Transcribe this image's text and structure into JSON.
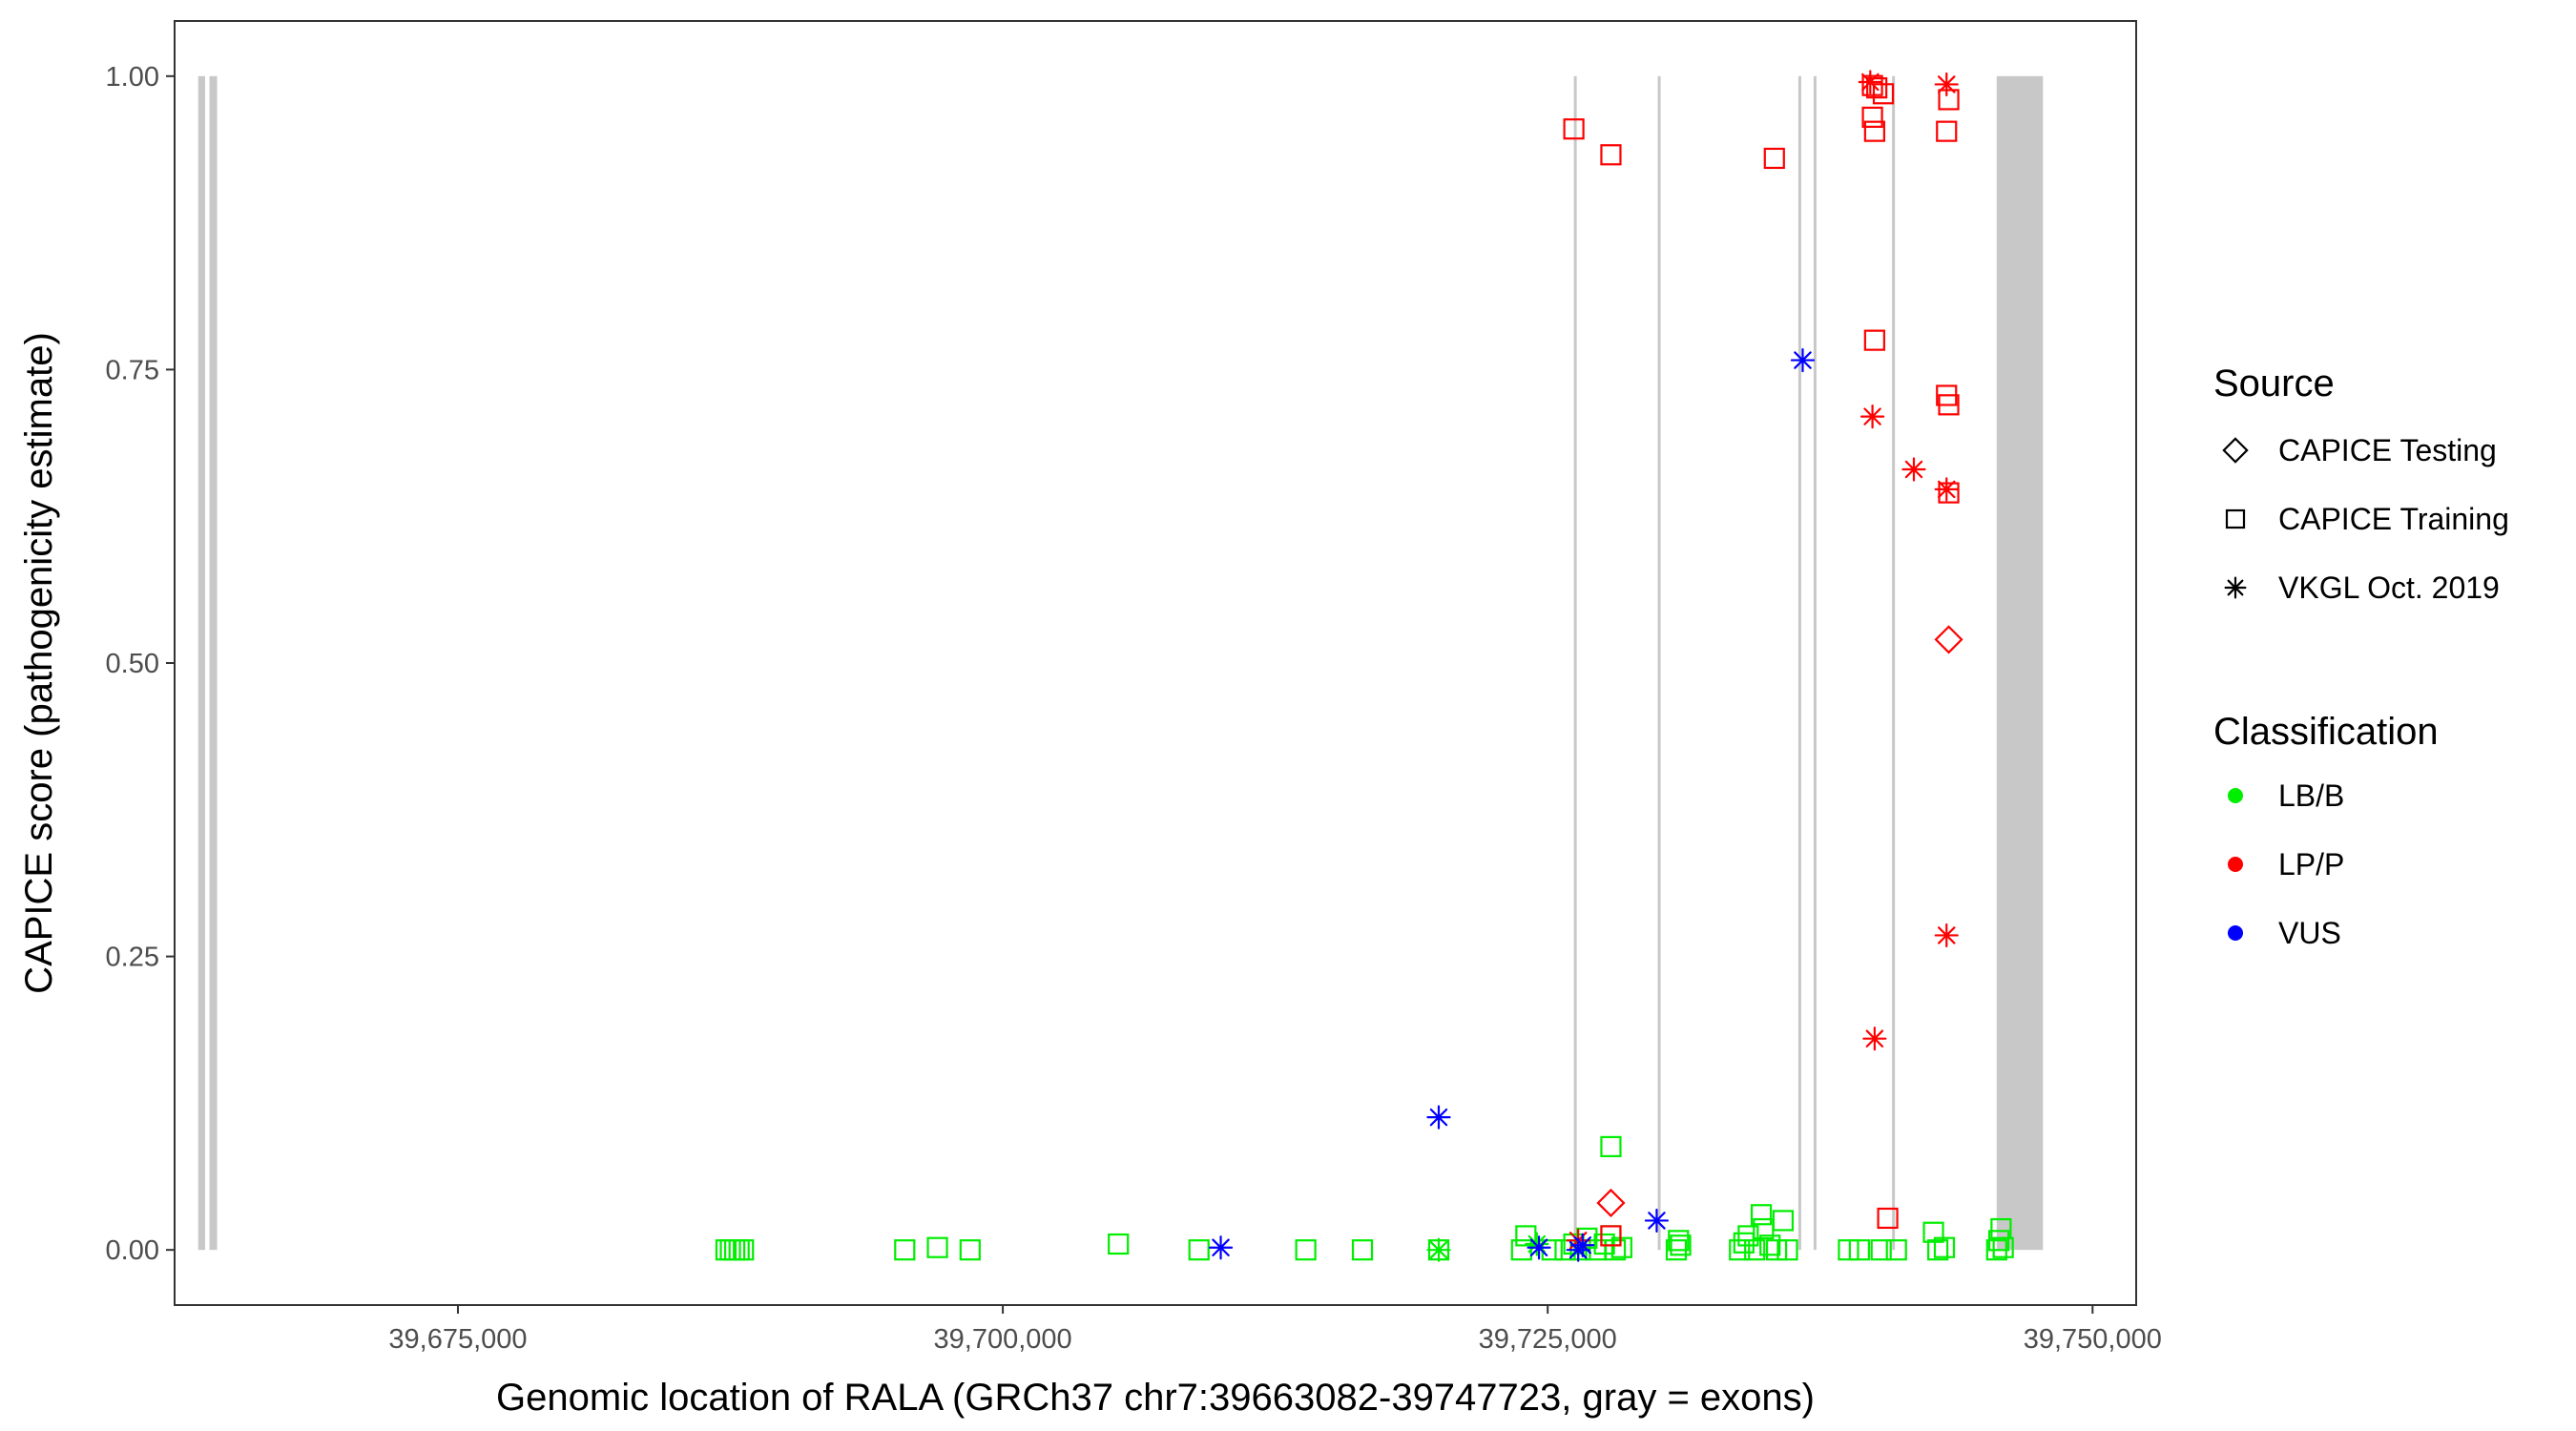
{
  "chart_data": {
    "type": "scatter",
    "xlabel": "Genomic location of RALA (GRCh37 chr7:39663082-39747723, gray = exons)",
    "ylabel": "CAPICE score (pathogenicity estimate)",
    "xlim": [
      39662000,
      39752000
    ],
    "ylim": [
      -0.047,
      1.047
    ],
    "x_ticks": [
      39675000,
      39700000,
      39725000,
      39750000
    ],
    "x_tick_labels": [
      "39,675,000",
      "39,700,000",
      "39,725,000",
      "39,750,000"
    ],
    "y_ticks": [
      0,
      0.25,
      0.5,
      0.75,
      1
    ],
    "y_tick_labels": [
      "0.00",
      "0.25",
      "0.50",
      "0.75",
      "1.00"
    ],
    "grid": false,
    "exons": [
      [
        39663082,
        39663400
      ],
      [
        39663600,
        39663950
      ],
      [
        39726200,
        39726300
      ],
      [
        39730050,
        39730150
      ],
      [
        39736500,
        39736600
      ],
      [
        39737200,
        39737300
      ],
      [
        39740800,
        39740900
      ],
      [
        39745600,
        39747723
      ]
    ],
    "exon_color": "#c8c8c8",
    "legend": {
      "placement": "right",
      "source_title": "Source",
      "source_entries": [
        {
          "label": "CAPICE Testing",
          "shape": "diamond"
        },
        {
          "label": "CAPICE Training",
          "shape": "square"
        },
        {
          "label": "VKGL Oct. 2019",
          "shape": "asterisk"
        }
      ],
      "class_title": "Classification",
      "class_entries": [
        {
          "label": "LB/B",
          "color": "#00ee00"
        },
        {
          "label": "LP/P",
          "color": "#ff0000"
        },
        {
          "label": "VUS",
          "color": "#0000ff"
        }
      ]
    },
    "points": [
      {
        "x": 39687300,
        "y": 0.0,
        "source": "square",
        "class": "LB/B"
      },
      {
        "x": 39687500,
        "y": 0.0,
        "source": "square",
        "class": "LB/B"
      },
      {
        "x": 39687700,
        "y": 0.0,
        "source": "square",
        "class": "LB/B"
      },
      {
        "x": 39687900,
        "y": 0.0,
        "source": "square",
        "class": "LB/B"
      },
      {
        "x": 39688100,
        "y": 0.0,
        "source": "square",
        "class": "LB/B"
      },
      {
        "x": 39695500,
        "y": 0.0,
        "source": "square",
        "class": "LB/B"
      },
      {
        "x": 39697000,
        "y": 0.002,
        "source": "square",
        "class": "LB/B"
      },
      {
        "x": 39698500,
        "y": 0.0,
        "source": "square",
        "class": "LB/B"
      },
      {
        "x": 39705300,
        "y": 0.005,
        "source": "square",
        "class": "LB/B"
      },
      {
        "x": 39709000,
        "y": 0.0,
        "source": "square",
        "class": "LB/B"
      },
      {
        "x": 39713900,
        "y": 0.0,
        "source": "square",
        "class": "LB/B"
      },
      {
        "x": 39716500,
        "y": 0.0,
        "source": "square",
        "class": "LB/B"
      },
      {
        "x": 39720000,
        "y": 0.0,
        "source": "square",
        "class": "LB/B"
      },
      {
        "x": 39720000,
        "y": 0.0,
        "source": "asterisk",
        "class": "LB/B"
      },
      {
        "x": 39723800,
        "y": 0.0,
        "source": "square",
        "class": "LB/B"
      },
      {
        "x": 39724000,
        "y": 0.012,
        "source": "square",
        "class": "LB/B"
      },
      {
        "x": 39724500,
        "y": 0.005,
        "source": "asterisk",
        "class": "LB/B"
      },
      {
        "x": 39725200,
        "y": 0.0,
        "source": "square",
        "class": "LB/B"
      },
      {
        "x": 39725800,
        "y": 0.0,
        "source": "square",
        "class": "LB/B"
      },
      {
        "x": 39726200,
        "y": 0.005,
        "source": "square",
        "class": "LB/B"
      },
      {
        "x": 39726500,
        "y": 0.0,
        "source": "square",
        "class": "LB/B"
      },
      {
        "x": 39726800,
        "y": 0.01,
        "source": "square",
        "class": "LB/B"
      },
      {
        "x": 39727200,
        "y": 0.0,
        "source": "square",
        "class": "LB/B"
      },
      {
        "x": 39727600,
        "y": 0.005,
        "source": "square",
        "class": "LB/B"
      },
      {
        "x": 39727900,
        "y": 0.088,
        "source": "square",
        "class": "LB/B"
      },
      {
        "x": 39727900,
        "y": 0.012,
        "source": "square",
        "class": "LB/B"
      },
      {
        "x": 39728100,
        "y": 0.0,
        "source": "square",
        "class": "LB/B"
      },
      {
        "x": 39728400,
        "y": 0.002,
        "source": "square",
        "class": "LB/B"
      },
      {
        "x": 39730900,
        "y": 0.0,
        "source": "square",
        "class": "LB/B"
      },
      {
        "x": 39731000,
        "y": 0.008,
        "source": "square",
        "class": "LB/B"
      },
      {
        "x": 39731100,
        "y": 0.004,
        "source": "square",
        "class": "LB/B"
      },
      {
        "x": 39733800,
        "y": 0.0,
        "source": "square",
        "class": "LB/B"
      },
      {
        "x": 39734000,
        "y": 0.006,
        "source": "square",
        "class": "LB/B"
      },
      {
        "x": 39734200,
        "y": 0.012,
        "source": "square",
        "class": "LB/B"
      },
      {
        "x": 39734500,
        "y": 0.0,
        "source": "square",
        "class": "LB/B"
      },
      {
        "x": 39734800,
        "y": 0.03,
        "source": "square",
        "class": "LB/B"
      },
      {
        "x": 39734900,
        "y": 0.018,
        "source": "square",
        "class": "LB/B"
      },
      {
        "x": 39735200,
        "y": 0.004,
        "source": "square",
        "class": "LB/B"
      },
      {
        "x": 39735500,
        "y": 0.0,
        "source": "square",
        "class": "LB/B"
      },
      {
        "x": 39735800,
        "y": 0.025,
        "source": "square",
        "class": "LB/B"
      },
      {
        "x": 39736000,
        "y": 0.0,
        "source": "square",
        "class": "LB/B"
      },
      {
        "x": 39738800,
        "y": 0.0,
        "source": "square",
        "class": "LB/B"
      },
      {
        "x": 39739300,
        "y": 0.0,
        "source": "square",
        "class": "LB/B"
      },
      {
        "x": 39740300,
        "y": 0.0,
        "source": "square",
        "class": "LB/B"
      },
      {
        "x": 39741000,
        "y": 0.0,
        "source": "square",
        "class": "LB/B"
      },
      {
        "x": 39742700,
        "y": 0.015,
        "source": "square",
        "class": "LB/B"
      },
      {
        "x": 39742900,
        "y": 0.0,
        "source": "square",
        "class": "LB/B"
      },
      {
        "x": 39743200,
        "y": 0.002,
        "source": "square",
        "class": "LB/B"
      },
      {
        "x": 39745600,
        "y": 0.0,
        "source": "square",
        "class": "LB/B"
      },
      {
        "x": 39745700,
        "y": 0.008,
        "source": "square",
        "class": "LB/B"
      },
      {
        "x": 39745800,
        "y": 0.018,
        "source": "square",
        "class": "LB/B"
      },
      {
        "x": 39745900,
        "y": 0.002,
        "source": "square",
        "class": "LB/B"
      },
      {
        "x": 39726200,
        "y": 0.955,
        "source": "square",
        "class": "LP/P"
      },
      {
        "x": 39727900,
        "y": 0.933,
        "source": "square",
        "class": "LP/P"
      },
      {
        "x": 39735400,
        "y": 0.93,
        "source": "square",
        "class": "LP/P"
      },
      {
        "x": 39739800,
        "y": 0.995,
        "source": "asterisk",
        "class": "LP/P"
      },
      {
        "x": 39739900,
        "y": 0.992,
        "source": "square",
        "class": "LP/P"
      },
      {
        "x": 39740100,
        "y": 0.99,
        "source": "square",
        "class": "LP/P"
      },
      {
        "x": 39740400,
        "y": 0.985,
        "source": "square",
        "class": "LP/P"
      },
      {
        "x": 39739900,
        "y": 0.965,
        "source": "square",
        "class": "LP/P"
      },
      {
        "x": 39740000,
        "y": 0.953,
        "source": "square",
        "class": "LP/P"
      },
      {
        "x": 39740000,
        "y": 0.775,
        "source": "square",
        "class": "LP/P"
      },
      {
        "x": 39739900,
        "y": 0.71,
        "source": "asterisk",
        "class": "LP/P"
      },
      {
        "x": 39741800,
        "y": 0.665,
        "source": "asterisk",
        "class": "LP/P"
      },
      {
        "x": 39743300,
        "y": 0.993,
        "source": "asterisk",
        "class": "LP/P"
      },
      {
        "x": 39743400,
        "y": 0.98,
        "source": "square",
        "class": "LP/P"
      },
      {
        "x": 39743300,
        "y": 0.953,
        "source": "square",
        "class": "LP/P"
      },
      {
        "x": 39743300,
        "y": 0.728,
        "source": "square",
        "class": "LP/P"
      },
      {
        "x": 39743400,
        "y": 0.72,
        "source": "square",
        "class": "LP/P"
      },
      {
        "x": 39743300,
        "y": 0.648,
        "source": "asterisk",
        "class": "LP/P"
      },
      {
        "x": 39743400,
        "y": 0.645,
        "source": "square",
        "class": "LP/P"
      },
      {
        "x": 39743400,
        "y": 0.52,
        "source": "diamond",
        "class": "LP/P"
      },
      {
        "x": 39743300,
        "y": 0.268,
        "source": "asterisk",
        "class": "LP/P"
      },
      {
        "x": 39740000,
        "y": 0.18,
        "source": "asterisk",
        "class": "LP/P"
      },
      {
        "x": 39740600,
        "y": 0.027,
        "source": "square",
        "class": "LP/P"
      },
      {
        "x": 39727900,
        "y": 0.04,
        "source": "diamond",
        "class": "LP/P"
      },
      {
        "x": 39726400,
        "y": 0.008,
        "source": "asterisk",
        "class": "LP/P"
      },
      {
        "x": 39727900,
        "y": 0.012,
        "source": "square",
        "class": "LP/P"
      },
      {
        "x": 39736700,
        "y": 0.758,
        "source": "asterisk",
        "class": "VUS"
      },
      {
        "x": 39720000,
        "y": 0.113,
        "source": "asterisk",
        "class": "VUS"
      },
      {
        "x": 39710000,
        "y": 0.002,
        "source": "asterisk",
        "class": "VUS"
      },
      {
        "x": 39730000,
        "y": 0.025,
        "source": "asterisk",
        "class": "VUS"
      },
      {
        "x": 39724600,
        "y": 0.002,
        "source": "asterisk",
        "class": "VUS"
      },
      {
        "x": 39726400,
        "y": 0.0,
        "source": "asterisk",
        "class": "VUS"
      },
      {
        "x": 39726600,
        "y": 0.004,
        "source": "asterisk",
        "class": "VUS"
      }
    ]
  }
}
